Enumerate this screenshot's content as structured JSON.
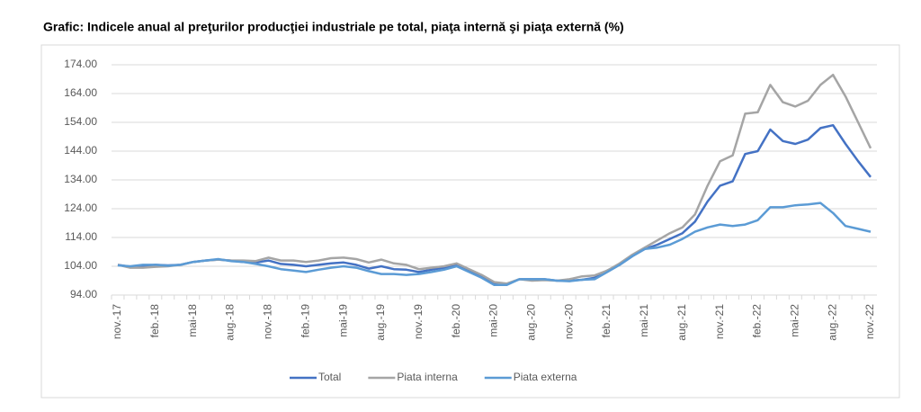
{
  "chart_data": {
    "type": "line",
    "title": "Grafic: Indicele anual al preţurilor producţiei industriale pe total, piaţa internă şi piaţa externă (%)",
    "categories": [
      "nov.-17",
      null,
      null,
      "feb.-18",
      null,
      null,
      "mai-18",
      null,
      null,
      "aug.-18",
      null,
      null,
      "nov.-18",
      null,
      null,
      "feb.-19",
      null,
      null,
      "mai-19",
      null,
      null,
      "aug.-19",
      null,
      null,
      "nov.-19",
      null,
      null,
      "feb.-20",
      null,
      null,
      "mai-20",
      null,
      null,
      "aug.-20",
      null,
      null,
      "nov.-20",
      null,
      null,
      "feb.-21",
      null,
      null,
      "mai-21",
      null,
      null,
      "aug.-21",
      null,
      null,
      "nov.-21",
      null,
      null,
      "feb.-22",
      null,
      null,
      "mai-22",
      null,
      null,
      "aug.-22",
      null,
      null,
      "nov.-22"
    ],
    "series": [
      {
        "name": "Total",
        "color": "#4472c4",
        "values": [
          104.5,
          103.8,
          104,
          104.5,
          104.3,
          104.5,
          105.5,
          106,
          106.3,
          106,
          105.5,
          105.3,
          106,
          104.8,
          104.5,
          104,
          104.5,
          105,
          105.3,
          104.5,
          103.2,
          104,
          103,
          102.8,
          102,
          102.8,
          103.5,
          104.5,
          102.5,
          100.5,
          98,
          97.8,
          99.5,
          99.5,
          99.5,
          99,
          99,
          99.3,
          100,
          102.5,
          104.5,
          107.5,
          110,
          111.5,
          113.5,
          115.5,
          119.5,
          126.5,
          132,
          133.5,
          143,
          144,
          151.5,
          147.5,
          146.5,
          148,
          152,
          153,
          146.5,
          140.5,
          135
        ]
      },
      {
        "name": "Piata interna",
        "color": "#a5a5a5",
        "values": [
          104.5,
          103.5,
          103.5,
          103.8,
          104,
          104.5,
          105.5,
          106,
          106.3,
          106,
          106,
          105.8,
          107,
          106,
          106,
          105.5,
          106,
          106.8,
          107,
          106.5,
          105.3,
          106.3,
          105,
          104.5,
          103,
          103.5,
          104,
          105,
          103,
          101,
          98.5,
          98,
          99.5,
          99,
          99.2,
          99,
          99.5,
          100.5,
          100.8,
          102.5,
          105,
          108,
          110.5,
          113,
          115.5,
          117.5,
          122,
          132,
          140.5,
          142.5,
          157,
          157.5,
          167,
          161,
          159.5,
          161.5,
          167,
          170.5,
          163,
          154,
          145
        ]
      },
      {
        "name": "Piata externa",
        "color": "#5b9bd5",
        "values": [
          104.3,
          104,
          104.5,
          104.5,
          104.2,
          104.5,
          105.5,
          106,
          106.5,
          105.8,
          105.5,
          104.8,
          104,
          103,
          102.5,
          102,
          102.8,
          103.5,
          104,
          103.5,
          102.3,
          101.3,
          101.3,
          101,
          101.3,
          102,
          102.8,
          104,
          102,
          100,
          97.5,
          97.5,
          99.5,
          99.5,
          99.5,
          99,
          98.8,
          99.3,
          99.5,
          102,
          104.5,
          107.5,
          110,
          110.5,
          111.5,
          113.5,
          116,
          117.5,
          118.5,
          118,
          118.5,
          120,
          124.5,
          124.5,
          125.2,
          125.5,
          126,
          122.5,
          118,
          117,
          116
        ]
      }
    ],
    "ylim": [
      94,
      174
    ],
    "yticks": [
      {
        "value": 94,
        "label": "94.00"
      },
      {
        "value": 104,
        "label": "104.00"
      },
      {
        "value": 114,
        "label": "114.00"
      },
      {
        "value": 124,
        "label": "124.00"
      },
      {
        "value": 134,
        "label": "134.00"
      },
      {
        "value": 144,
        "label": "144.00"
      },
      {
        "value": 154,
        "label": "154.00"
      },
      {
        "value": 164,
        "label": "164.00"
      },
      {
        "value": 174,
        "label": "174.00"
      }
    ],
    "grid": true,
    "legend": "bottom"
  }
}
